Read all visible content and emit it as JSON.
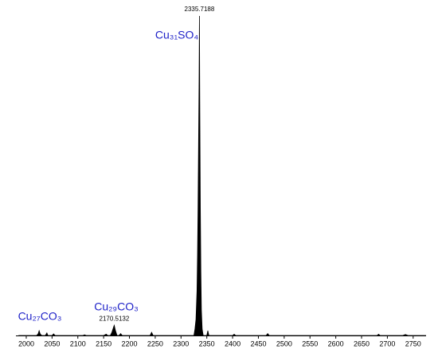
{
  "chart_data": {
    "type": "spectrum",
    "color": "#000000",
    "x": [
      1985,
      2020,
      2023,
      2025,
      2027,
      2030,
      2037,
      2040,
      2042,
      2050,
      2053,
      2056,
      2110,
      2113,
      2116,
      2150,
      2155,
      2158,
      2163,
      2166,
      2168,
      2170.5132,
      2173,
      2176,
      2180,
      2183,
      2186,
      2240,
      2243,
      2246,
      2325,
      2327,
      2329,
      2331,
      2332,
      2333,
      2334,
      2335,
      2335.7188,
      2336.5,
      2337.5,
      2338.5,
      2339.5,
      2341,
      2343,
      2350,
      2352,
      2354,
      2400,
      2403,
      2406,
      2465,
      2468,
      2471,
      2680,
      2683,
      2686,
      2730,
      2735,
      2740,
      2775
    ],
    "y": [
      0,
      0,
      0.5,
      1.5,
      0.5,
      0,
      0,
      0.8,
      0,
      0,
      0.5,
      0,
      0,
      0.2,
      0,
      0,
      0.4,
      0,
      0,
      1,
      2,
      3.2,
      1.5,
      0,
      0,
      0.6,
      0,
      0,
      1,
      0,
      0,
      2,
      5,
      14,
      25,
      40,
      60,
      80,
      100,
      70,
      40,
      20,
      8,
      2,
      0,
      0,
      1.5,
      0,
      0,
      0.4,
      0,
      0,
      0.6,
      0,
      0,
      0.4,
      0,
      0,
      0.3,
      0,
      0
    ],
    "xlim": [
      1980,
      2775
    ],
    "ylim": [
      0,
      100
    ],
    "xticks": [
      2000,
      2050,
      2100,
      2150,
      2200,
      2250,
      2300,
      2350,
      2400,
      2450,
      2500,
      2550,
      2600,
      2650,
      2700,
      2750
    ],
    "peak_labels": [
      2335.7188,
      2170.5132
    ],
    "annotations": [
      "Cu₃₁SO₄",
      "Cu₂₉CO₃",
      "Cu₂₇CO₃"
    ]
  }
}
